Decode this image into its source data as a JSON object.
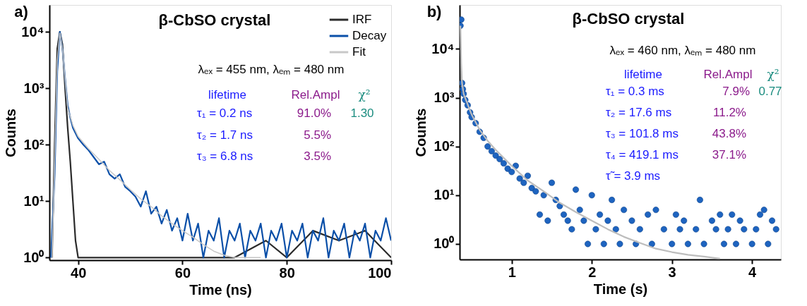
{
  "chart_data": [
    {
      "type": "line",
      "title": "β-CbSO crystal",
      "xlabel": "Time (ns)",
      "ylabel": "Counts",
      "log": "y",
      "grid": false,
      "legend": "top right",
      "marker": "none",
      "line_style": "solid",
      "xlim": [
        34.5,
        100
      ],
      "xticks": [
        40,
        60,
        80,
        100
      ],
      "ylim": [
        0.9,
        30000
      ],
      "yticks": [
        {
          "value": 1,
          "label": "10⁰"
        },
        {
          "value": 10,
          "label": "10¹"
        },
        {
          "value": 100,
          "label": "10²"
        },
        {
          "value": 1000,
          "label": "10³"
        },
        {
          "value": 10000,
          "label": "10⁴"
        }
      ],
      "annotations": [
        "a)",
        "λₑₓ = 455 nm, λₑₘ = 480 nm",
        "lifetime",
        "Rel.Ampl",
        "χ²",
        "τ₁ = 0.2  ns",
        "91.0%",
        "1.30",
        "τ₂ = 1.7  ns",
        "5.5%",
        "τ₃ = 6.8  ns",
        "3.5%"
      ],
      "series": [
        {
          "name": "IRF",
          "color": "#2b2b2b",
          "x": [
            35,
            35.5,
            36,
            36.5,
            37,
            37.5,
            38,
            38.5,
            39,
            39.5,
            40,
            50,
            60,
            70,
            76,
            80,
            85,
            90,
            95,
            100
          ],
          "values": [
            1,
            100,
            5000,
            10000,
            6000,
            1000,
            200,
            50,
            10,
            2,
            1,
            1,
            1,
            1,
            2,
            1,
            3,
            2,
            3,
            1
          ]
        },
        {
          "name": "Decay",
          "color": "#0a4fa8",
          "x": [
            34.8,
            35.5,
            36,
            36.5,
            37,
            37.5,
            38,
            38.5,
            39,
            40,
            41,
            42,
            43,
            44,
            45,
            46,
            47,
            48,
            49,
            50,
            51,
            52,
            53,
            54,
            55,
            56,
            57,
            58,
            59,
            60,
            61,
            62,
            63,
            64,
            65,
            66,
            67,
            68,
            69,
            70,
            71,
            72,
            73,
            74,
            75,
            76,
            77,
            78,
            79,
            80,
            81,
            82,
            83,
            84,
            85,
            86,
            87,
            88,
            89,
            90,
            91,
            92,
            93,
            94,
            95,
            96,
            97,
            98,
            99,
            100
          ],
          "values": [
            1,
            30,
            2000,
            10000,
            5000,
            1500,
            500,
            300,
            200,
            130,
            100,
            80,
            60,
            45,
            50,
            30,
            25,
            30,
            18,
            15,
            12,
            8,
            15,
            6,
            8,
            4,
            7,
            3,
            5,
            2,
            6,
            2,
            4,
            1,
            3,
            2,
            5,
            1,
            3,
            2,
            4,
            1,
            3,
            2,
            4,
            1,
            3,
            2,
            4,
            1,
            3,
            2,
            4,
            1,
            3,
            2,
            5,
            1,
            3,
            2,
            4,
            1,
            3,
            2,
            4,
            1,
            3,
            2,
            5,
            2
          ]
        },
        {
          "name": "Fit",
          "color": "#c8c8c8",
          "x": [
            35,
            35.5,
            36,
            36.5,
            37,
            37.5,
            38,
            39,
            40,
            42,
            44,
            46,
            48,
            50,
            52,
            54,
            56,
            58,
            60,
            62,
            64,
            66,
            68,
            70,
            75
          ],
          "values": [
            1,
            50,
            3000,
            9500,
            5000,
            1500,
            450,
            220,
            140,
            85,
            55,
            35,
            24,
            16,
            11,
            8,
            5.5,
            4,
            3,
            2.3,
            1.7,
            1.3,
            1.1,
            1,
            1
          ]
        }
      ]
    },
    {
      "type": "scatter",
      "title": "β-CbSO crystal",
      "xlabel": "Time (s)",
      "ylabel": "Counts",
      "log": "y",
      "grid": false,
      "legend": false,
      "marker": "circle",
      "xlim": [
        0.35,
        4.36
      ],
      "xticks": [
        1,
        2,
        3,
        4
      ],
      "ylim": [
        0.48,
        80000
      ],
      "yticks": [
        {
          "value": 1,
          "label": "10⁰"
        },
        {
          "value": 10,
          "label": "10¹"
        },
        {
          "value": 100,
          "label": "10²"
        },
        {
          "value": 1000,
          "label": "10³"
        },
        {
          "value": 10000,
          "label": "10⁴"
        }
      ],
      "annotations": [
        "b)",
        "λₑₓ = 460 nm, λₑₘ = 480 nm",
        "lifetime",
        "Rel.Ampl",
        "χ²",
        "τ₁ = 0.3 ms",
        "7.9%",
        "0.77",
        "τ₂ = 17.6 ms",
        "11.2%",
        "τ₃ = 101.8 ms",
        "43.8%",
        "τ₄ = 419.1 ms",
        "37.1%",
        "τ̃ = 3.9 ms"
      ],
      "series": [
        {
          "color": "#1e64c0",
          "x": [
            0.36,
            0.37,
            0.38,
            0.39,
            0.4,
            0.42,
            0.45,
            0.48,
            0.5,
            0.55,
            0.6,
            0.65,
            0.7,
            0.75,
            0.8,
            0.85,
            0.9,
            0.95,
            1.0,
            1.05,
            1.1,
            1.15,
            1.2,
            1.25,
            1.3,
            1.35,
            1.4,
            1.45,
            1.5,
            1.55,
            1.6,
            1.65,
            1.7,
            1.75,
            1.8,
            1.85,
            1.9,
            1.95,
            2.0,
            2.05,
            2.1,
            2.15,
            2.2,
            2.25,
            2.3,
            2.35,
            2.4,
            2.5,
            2.55,
            2.6,
            2.7,
            2.75,
            2.8,
            2.9,
            3.0,
            3.05,
            3.1,
            3.15,
            3.2,
            3.3,
            3.35,
            3.4,
            3.5,
            3.55,
            3.6,
            3.65,
            3.7,
            3.75,
            3.8,
            3.85,
            3.9,
            4.0,
            4.05,
            4.1,
            4.15,
            4.2,
            4.25,
            4.3
          ],
          "values": [
            30000,
            40000,
            2000,
            1500,
            1200,
            900,
            700,
            500,
            400,
            300,
            200,
            150,
            100,
            80,
            65,
            55,
            45,
            35,
            30,
            40,
            22,
            18,
            25,
            14,
            12,
            4,
            10,
            3,
            18,
            8,
            6,
            4,
            3,
            2,
            13,
            5,
            3,
            1,
            10,
            2,
            4,
            1,
            3,
            8,
            2,
            1,
            5,
            3,
            1,
            2,
            4,
            1,
            5,
            2,
            1,
            4,
            2,
            3,
            1,
            2,
            8,
            1,
            3,
            2,
            4,
            1,
            2,
            4,
            1,
            3,
            2,
            1,
            2,
            4,
            5,
            1,
            3,
            2
          ]
        },
        {
          "type": "line",
          "marker": "none",
          "color": "#bdbdbd",
          "x": [
            0.36,
            0.37,
            0.38,
            0.4,
            0.5,
            0.6,
            0.7,
            0.8,
            1.0,
            1.2,
            1.4,
            1.6,
            1.8,
            2.0,
            2.2,
            2.4,
            2.6,
            2.8,
            3.0,
            3.2,
            3.4,
            3.6
          ],
          "values": [
            30000,
            5000,
            2000,
            1200,
            450,
            220,
            130,
            85,
            40,
            20,
            12,
            7,
            4.5,
            3,
            2,
            1.4,
            1.05,
            0.8,
            0.68,
            0.6,
            0.55,
            0.5
          ]
        }
      ]
    }
  ]
}
